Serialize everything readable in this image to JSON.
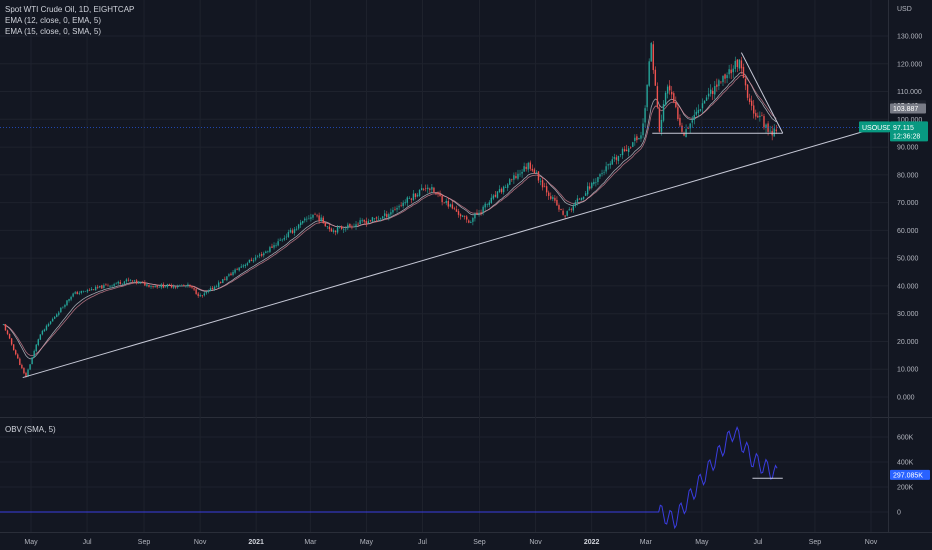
{
  "header": {
    "title": "Spot WTI Crude Oil, 1D, EIGHTCAP",
    "ema1": "EMA (12, close, 0, EMA, 5)",
    "ema2": "EMA (15, close, 0, SMA, 5)"
  },
  "obv_panel": {
    "label": "OBV (SMA, 5)"
  },
  "colors": {
    "bull": "#26a69a",
    "bear": "#ef5350",
    "ema": "#b2b5be",
    "trend": "#c6c8d6",
    "obv": "#3a3de0",
    "badge": "#2962ff"
  },
  "chart_data": [
    {
      "type": "candlestick",
      "title": "Spot WTI Crude Oil, 1D, EIGHTCAP",
      "currency": "USD",
      "ylim": [
        0,
        135
      ],
      "y_ticks": [
        "130.000",
        "120.000",
        "110.000",
        "100.000",
        "90.000",
        "80.000",
        "70.000",
        "60.000",
        "50.000",
        "40.000",
        "30.000",
        "20.000",
        "10.000",
        "0.000"
      ],
      "x_ticks": [
        "May",
        "Jul",
        "Sep",
        "Nov",
        "2021",
        "Mar",
        "May",
        "Jul",
        "Sep",
        "Nov",
        "2022",
        "Mar",
        "May",
        "Jul",
        "Sep",
        "Nov"
      ],
      "price_path": [
        {
          "d": "2020-04-01",
          "v": 26
        },
        {
          "d": "2020-04-25",
          "v": 7
        },
        {
          "d": "2020-05-10",
          "v": 22
        },
        {
          "d": "2020-06-15",
          "v": 37
        },
        {
          "d": "2020-08-15",
          "v": 42
        },
        {
          "d": "2020-09-10",
          "v": 40
        },
        {
          "d": "2020-10-20",
          "v": 40
        },
        {
          "d": "2020-11-02",
          "v": 36
        },
        {
          "d": "2020-12-15",
          "v": 47
        },
        {
          "d": "2021-01-10",
          "v": 52
        },
        {
          "d": "2021-03-05",
          "v": 66
        },
        {
          "d": "2021-03-25",
          "v": 60
        },
        {
          "d": "2021-05-20",
          "v": 65
        },
        {
          "d": "2021-07-06",
          "v": 76
        },
        {
          "d": "2021-08-20",
          "v": 63
        },
        {
          "d": "2021-10-25",
          "v": 84
        },
        {
          "d": "2021-12-02",
          "v": 65
        },
        {
          "d": "2022-01-10",
          "v": 80
        },
        {
          "d": "2022-02-25",
          "v": 95
        },
        {
          "d": "2022-03-07",
          "v": 127
        },
        {
          "d": "2022-03-16",
          "v": 95
        },
        {
          "d": "2022-03-24",
          "v": 113
        },
        {
          "d": "2022-04-11",
          "v": 95
        },
        {
          "d": "2022-05-05",
          "v": 108
        },
        {
          "d": "2022-06-10",
          "v": 121
        },
        {
          "d": "2022-06-22",
          "v": 105
        },
        {
          "d": "2022-07-05",
          "v": 100
        },
        {
          "d": "2022-07-14",
          "v": 95
        },
        {
          "d": "2022-07-22",
          "v": 97
        }
      ],
      "trendlines": [
        {
          "from": {
            "d": "2020-04-22",
            "v": 7
          },
          "to": {
            "d": "2022-10-28",
            "v": 96
          }
        },
        {
          "from": {
            "d": "2022-06-13",
            "v": 124
          },
          "to": {
            "d": "2022-07-28",
            "v": 95
          }
        },
        {
          "from": {
            "d": "2022-03-08",
            "v": 95
          },
          "to": {
            "d": "2022-07-28",
            "v": 95
          }
        }
      ],
      "price_labels": [
        {
          "text": "105.042",
          "v": 105.042,
          "style": "dark"
        },
        {
          "text": "103.887",
          "v": 103.887,
          "style": "gray"
        },
        {
          "text": "97.115",
          "v": 97.115,
          "style": "current",
          "symbol": "USOUSD",
          "countdown": "12:36:28"
        }
      ],
      "series": [
        {
          "name": "EMA (12, close, 0, EMA, 5)"
        },
        {
          "name": "EMA (15, close, 0, SMA, 5)"
        }
      ]
    },
    {
      "type": "line",
      "title": "OBV (SMA, 5)",
      "ylim": [
        -40000,
        700000
      ],
      "y_ticks": [
        "600K",
        "400K",
        "200K",
        "0"
      ],
      "obv_path": [
        {
          "d": "2020-04-01",
          "v": 0
        },
        {
          "d": "2022-03-15",
          "v": 0
        },
        {
          "d": "2022-04-01",
          "v": -70000
        },
        {
          "d": "2022-06-05",
          "v": 650000
        },
        {
          "d": "2022-06-25",
          "v": 420000
        },
        {
          "d": "2022-07-22",
          "v": 297085
        }
      ],
      "level_line": {
        "from": "2022-06-25",
        "to": "2022-07-28",
        "v": 270000
      },
      "last_value_label": "297.085K"
    }
  ]
}
